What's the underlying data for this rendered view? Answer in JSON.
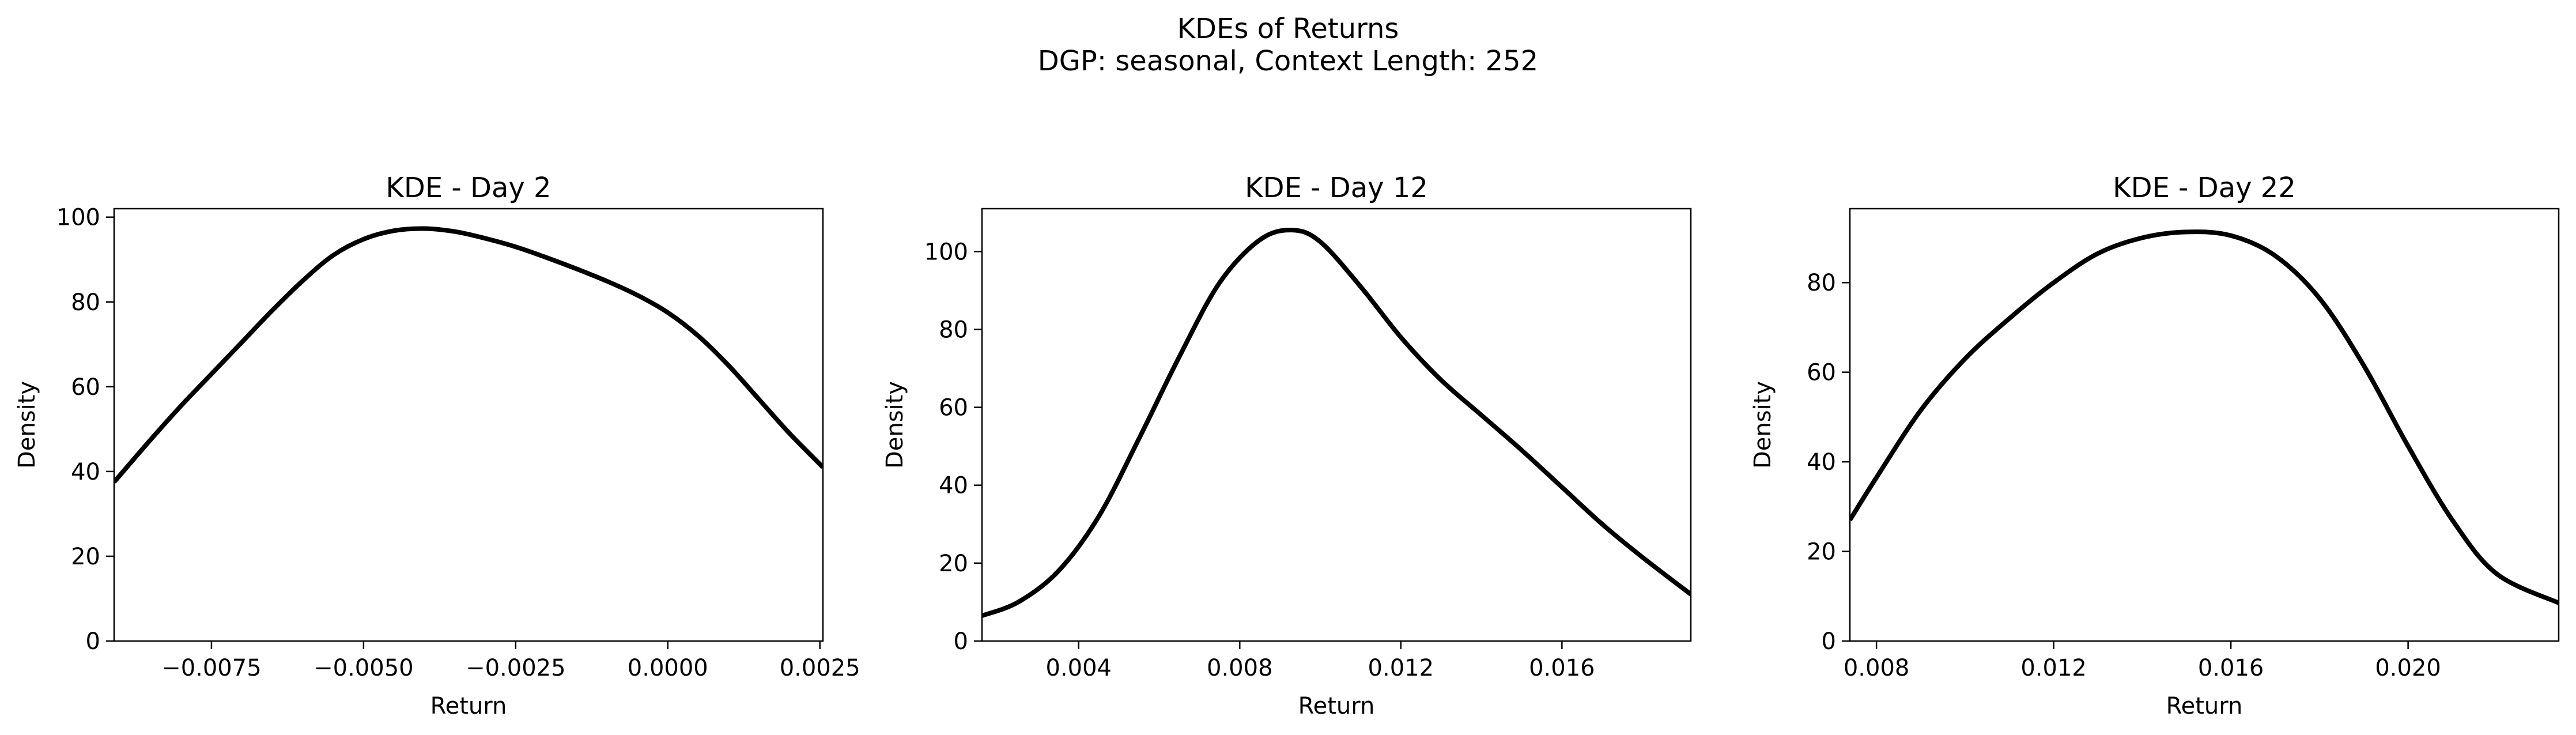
{
  "figure": {
    "title": "KDEs of Returns",
    "subtitle": "DGP: seasonal, Context Length: 252"
  },
  "chart_data": [
    {
      "type": "line",
      "title": "KDE - Day 2",
      "xlabel": "Return",
      "ylabel": "Density",
      "xlim": [
        -0.0091,
        0.00255
      ],
      "ylim": [
        0,
        102
      ],
      "xticks": [
        -0.0075,
        -0.005,
        -0.0025,
        0.0,
        0.0025
      ],
      "xtick_labels": [
        "−0.0075",
        "−0.0050",
        "−0.0025",
        "0.0000",
        "0.0025"
      ],
      "yticks": [
        0,
        20,
        40,
        60,
        80,
        100
      ],
      "ytick_labels": [
        "0",
        "20",
        "40",
        "60",
        "80",
        "100"
      ],
      "grid": false,
      "series": [
        {
          "color": "#000000",
          "x": [
            -0.0091,
            -0.0085,
            -0.008,
            -0.0075,
            -0.007,
            -0.0065,
            -0.006,
            -0.0055,
            -0.005,
            -0.0045,
            -0.004,
            -0.0035,
            -0.003,
            -0.0025,
            -0.002,
            -0.0015,
            -0.001,
            -0.0005,
            0.0,
            0.0005,
            0.001,
            0.0015,
            0.002,
            0.00255
          ],
          "y": [
            37.5,
            47.5,
            55.5,
            63.0,
            70.5,
            78.0,
            85.0,
            91.0,
            94.8,
            96.8,
            97.3,
            96.6,
            95.0,
            93.0,
            90.5,
            87.8,
            84.9,
            81.6,
            77.5,
            72.0,
            65.0,
            57.0,
            49.0,
            41.0
          ]
        }
      ]
    },
    {
      "type": "line",
      "title": "KDE - Day 12",
      "xlabel": "Return",
      "ylabel": "Density",
      "xlim": [
        0.0016,
        0.0192
      ],
      "ylim": [
        0,
        111
      ],
      "xticks": [
        0.004,
        0.008,
        0.012,
        0.016
      ],
      "xtick_labels": [
        "0.004",
        "0.008",
        "0.012",
        "0.016"
      ],
      "yticks": [
        0,
        20,
        40,
        60,
        80,
        100
      ],
      "ytick_labels": [
        "0",
        "20",
        "40",
        "60",
        "80",
        "100"
      ],
      "grid": false,
      "series": [
        {
          "color": "#000000",
          "x": [
            0.0016,
            0.0025,
            0.0035,
            0.0045,
            0.0055,
            0.0065,
            0.0075,
            0.0085,
            0.0093,
            0.01,
            0.011,
            0.012,
            0.013,
            0.014,
            0.015,
            0.016,
            0.017,
            0.018,
            0.0192
          ],
          "y": [
            6.5,
            10.0,
            18.0,
            32.0,
            52.0,
            73.0,
            92.0,
            103.0,
            105.5,
            102.5,
            91.0,
            78.0,
            67.0,
            58.0,
            49.0,
            39.5,
            30.0,
            21.5,
            12.0
          ]
        }
      ]
    },
    {
      "type": "line",
      "title": "KDE - Day 22",
      "xlabel": "Return",
      "ylabel": "Density",
      "xlim": [
        0.0074,
        0.0234
      ],
      "ylim": [
        0,
        96.5
      ],
      "xticks": [
        0.008,
        0.012,
        0.016,
        0.02
      ],
      "xtick_labels": [
        "0.008",
        "0.012",
        "0.016",
        "0.020"
      ],
      "yticks": [
        0,
        20,
        40,
        60,
        80
      ],
      "ytick_labels": [
        "0",
        "20",
        "40",
        "60",
        "80"
      ],
      "grid": false,
      "series": [
        {
          "color": "#000000",
          "x": [
            0.0074,
            0.008,
            0.009,
            0.01,
            0.011,
            0.012,
            0.013,
            0.014,
            0.015,
            0.016,
            0.017,
            0.018,
            0.019,
            0.02,
            0.021,
            0.022,
            0.0234
          ],
          "y": [
            27.0,
            36.5,
            51.5,
            63.0,
            72.0,
            80.0,
            86.5,
            90.0,
            91.3,
            90.5,
            86.0,
            76.5,
            61.5,
            43.5,
            27.0,
            15.0,
            8.5
          ]
        }
      ]
    }
  ]
}
